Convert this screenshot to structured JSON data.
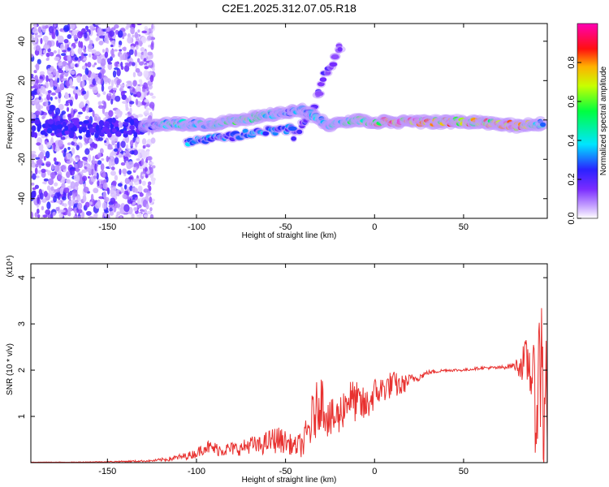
{
  "title": "C2E1.2025.312.07.05.R18",
  "chart_data": [
    {
      "type": "heatmap",
      "xlabel": "Height of straight line (km)",
      "ylabel": "Frequency (Hz)",
      "xlim": [
        -193,
        97
      ],
      "ylim": [
        -50,
        49
      ],
      "xticks": [
        -150,
        -100,
        -50,
        0,
        50
      ],
      "yticks": [
        40,
        20,
        0,
        -20,
        -40
      ],
      "colorbar": {
        "label": "Normalized spectral amplitude",
        "range": [
          0,
          1
        ],
        "ticks": [
          "0.0",
          "0.2",
          "0.4",
          "0.6",
          "0.8"
        ]
      },
      "features": [
        {
          "name": "scatter_region",
          "x_range": [
            -193,
            -128
          ],
          "y_range": [
            -50,
            49
          ]
        },
        {
          "name": "main_band",
          "x": [
            -130,
            -110,
            -90,
            -70,
            -55,
            -40,
            -25,
            -10,
            0,
            20,
            40,
            60,
            80,
            95
          ],
          "frequency": [
            -3,
            -2,
            -2,
            1,
            3,
            5,
            -3,
            0,
            -1,
            -1,
            -1,
            -1,
            -3,
            -2
          ],
          "amplitude": [
            0.3,
            0.5,
            0.45,
            0.6,
            0.4,
            0.35,
            0.4,
            0.6,
            0.85,
            0.95,
            0.9,
            0.8,
            0.9,
            0.4
          ]
        },
        {
          "name": "lower_band",
          "x": [
            -105,
            -85,
            -65,
            -50,
            -45
          ],
          "frequency": [
            -11,
            -9,
            -6,
            -5,
            -4
          ],
          "amplitude": [
            0.35,
            0.3,
            0.35,
            0.3,
            0.3
          ]
        },
        {
          "name": "upper_streak",
          "x": [
            -45,
            -38,
            -33,
            -28,
            -22,
            -18
          ],
          "frequency": [
            -8,
            0,
            10,
            22,
            32,
            40
          ],
          "amplitude": [
            0.25,
            0.25,
            0.2,
            0.2,
            0.15,
            0.15
          ]
        }
      ]
    },
    {
      "type": "line",
      "xlabel": "Height of straight line (km)",
      "ylabel": "SNR (10 * v/v)",
      "yscale_note": "(x10⁴)",
      "xlim": [
        -193,
        97
      ],
      "ylim": [
        0,
        4.3
      ],
      "xticks": [
        -150,
        -100,
        -50,
        0,
        50
      ],
      "yticks": [
        1,
        2,
        3,
        4
      ],
      "series": [
        {
          "color": "#e8312f",
          "x": [
            -193,
            -170,
            -150,
            -135,
            -125,
            -115,
            -105,
            -100,
            -95,
            -90,
            -85,
            -80,
            -75,
            -70,
            -65,
            -60,
            -55,
            -50,
            -45,
            -40,
            -35,
            -30,
            -25,
            -20,
            -15,
            -10,
            -5,
            0,
            5,
            10,
            15,
            20,
            25,
            30,
            40,
            50,
            60,
            70,
            78,
            82,
            85,
            87,
            89,
            90,
            91,
            92,
            93,
            94,
            95,
            96,
            97
          ],
          "values": [
            0.01,
            0.01,
            0.02,
            0.03,
            0.04,
            0.08,
            0.15,
            0.2,
            0.35,
            0.3,
            0.28,
            0.3,
            0.3,
            0.4,
            0.35,
            0.45,
            0.5,
            0.45,
            0.35,
            0.4,
            0.9,
            1.4,
            0.9,
            1.0,
            1.4,
            1.3,
            1.2,
            1.5,
            1.6,
            1.7,
            1.65,
            1.8,
            1.85,
            1.95,
            2.0,
            2.0,
            2.05,
            2.05,
            2.1,
            2.1,
            2.2,
            2.1,
            1.8,
            1.4,
            0.8,
            2.5,
            1.6,
            3.0,
            0.4,
            2.5,
            0.5
          ],
          "noise": [
            0.005,
            0.005,
            0.01,
            0.02,
            0.02,
            0.05,
            0.08,
            0.1,
            0.15,
            0.15,
            0.15,
            0.15,
            0.15,
            0.2,
            0.2,
            0.25,
            0.3,
            0.25,
            0.2,
            0.3,
            0.6,
            0.6,
            0.45,
            0.45,
            0.45,
            0.45,
            0.4,
            0.35,
            0.3,
            0.3,
            0.25,
            0.12,
            0.08,
            0.05,
            0.03,
            0.03,
            0.03,
            0.04,
            0.06,
            0.3,
            0.5,
            0.6,
            0.8,
            1.0,
            1.2,
            1.3,
            1.3,
            1.3,
            1.3,
            1.2,
            1.2
          ]
        }
      ]
    }
  ]
}
